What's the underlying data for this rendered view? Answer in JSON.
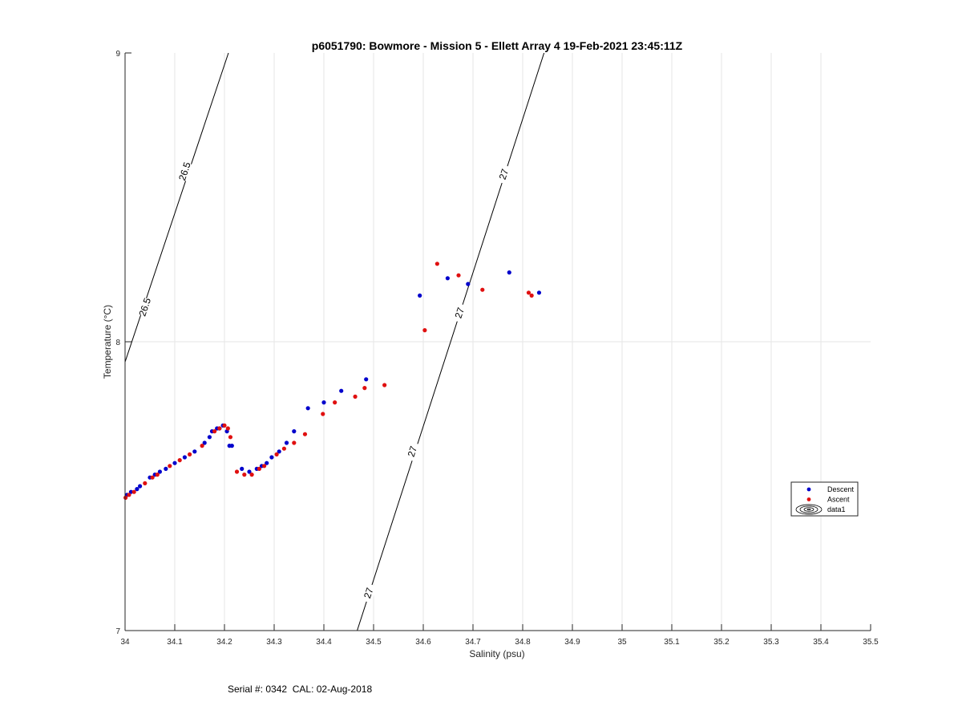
{
  "footer": {
    "serial_cal": "Serial #: 0342  CAL: 02-Aug-2018"
  },
  "colors": {
    "descent": "#0000cc",
    "ascent": "#e01010",
    "grid": "#e6e6e6",
    "axis": "#262626",
    "contour": "#000000"
  },
  "chart_data": {
    "type": "scatter",
    "title": "p6051790: Bowmore - Mission 5 - Ellett Array 4 19-Feb-2021 23:45:11Z",
    "xlabel": "Salinity (psu)",
    "ylabel": "Temperature (°C)",
    "xlim": [
      34.0,
      35.5
    ],
    "ylim": [
      7,
      9
    ],
    "xticks": [
      34,
      34.1,
      34.2,
      34.3,
      34.4,
      34.5,
      34.6,
      34.7,
      34.8,
      34.9,
      35,
      35.1,
      35.2,
      35.3,
      35.4,
      35.5
    ],
    "xtick_labels": [
      "34",
      "34.1",
      "34.2",
      "34.3",
      "34.4",
      "34.5",
      "34.6",
      "34.7",
      "34.8",
      "34.9",
      "35",
      "35.1",
      "35.2",
      "35.3",
      "35.4",
      "35.5"
    ],
    "yticks": [
      7,
      8,
      9
    ],
    "ytick_labels": [
      "7",
      "8",
      "9"
    ],
    "grid": true,
    "legend_position": "right",
    "legend": [
      "Descent",
      "Ascent",
      "data1"
    ],
    "series": [
      {
        "name": "Descent",
        "marker": "dot",
        "points": [
          [
            34.004,
            7.47
          ],
          [
            34.012,
            7.48
          ],
          [
            34.024,
            7.49
          ],
          [
            34.03,
            7.5
          ],
          [
            34.05,
            7.53
          ],
          [
            34.06,
            7.54
          ],
          [
            34.07,
            7.55
          ],
          [
            34.082,
            7.56
          ],
          [
            34.1,
            7.58
          ],
          [
            34.12,
            7.6
          ],
          [
            34.14,
            7.62
          ],
          [
            34.16,
            7.65
          ],
          [
            34.17,
            7.67
          ],
          [
            34.175,
            7.69
          ],
          [
            34.185,
            7.7
          ],
          [
            34.19,
            7.7
          ],
          [
            34.197,
            7.71
          ],
          [
            34.205,
            7.69
          ],
          [
            34.21,
            7.64
          ],
          [
            34.215,
            7.64
          ],
          [
            34.235,
            7.56
          ],
          [
            34.25,
            7.55
          ],
          [
            34.265,
            7.56
          ],
          [
            34.275,
            7.57
          ],
          [
            34.285,
            7.58
          ],
          [
            34.295,
            7.6
          ],
          [
            34.31,
            7.62
          ],
          [
            34.325,
            7.65
          ],
          [
            34.34,
            7.69
          ],
          [
            34.368,
            7.77
          ],
          [
            34.4,
            7.79
          ],
          [
            34.435,
            7.83
          ],
          [
            34.485,
            7.87
          ],
          [
            34.593,
            8.16
          ],
          [
            34.649,
            8.22
          ],
          [
            34.69,
            8.2
          ],
          [
            34.773,
            8.24
          ],
          [
            34.833,
            8.17
          ]
        ]
      },
      {
        "name": "Ascent",
        "marker": "dot",
        "points": [
          [
            34.001,
            7.46
          ],
          [
            34.008,
            7.47
          ],
          [
            34.018,
            7.48
          ],
          [
            34.04,
            7.51
          ],
          [
            34.055,
            7.53
          ],
          [
            34.065,
            7.54
          ],
          [
            34.09,
            7.57
          ],
          [
            34.11,
            7.59
          ],
          [
            34.13,
            7.61
          ],
          [
            34.155,
            7.64
          ],
          [
            34.18,
            7.69
          ],
          [
            34.19,
            7.7
          ],
          [
            34.2,
            7.71
          ],
          [
            34.207,
            7.7
          ],
          [
            34.212,
            7.67
          ],
          [
            34.225,
            7.55
          ],
          [
            34.24,
            7.54
          ],
          [
            34.255,
            7.54
          ],
          [
            34.27,
            7.56
          ],
          [
            34.28,
            7.57
          ],
          [
            34.305,
            7.61
          ],
          [
            34.32,
            7.63
          ],
          [
            34.34,
            7.65
          ],
          [
            34.362,
            7.68
          ],
          [
            34.398,
            7.75
          ],
          [
            34.422,
            7.79
          ],
          [
            34.463,
            7.81
          ],
          [
            34.482,
            7.84
          ],
          [
            34.522,
            7.85
          ],
          [
            34.603,
            8.04
          ],
          [
            34.628,
            8.27
          ],
          [
            34.671,
            8.23
          ],
          [
            34.719,
            8.18
          ],
          [
            34.812,
            8.17
          ],
          [
            34.818,
            8.16
          ]
        ]
      }
    ],
    "contours": [
      {
        "name": "26.5",
        "points": [
          [
            34.0,
            7.93
          ],
          [
            34.208,
            9.0
          ]
        ],
        "label_positions": [
          [
            34.04,
            8.12
          ],
          [
            34.12,
            8.59
          ]
        ]
      },
      {
        "name": "27",
        "points": [
          [
            34.467,
            7.0
          ],
          [
            34.843,
            9.0
          ]
        ],
        "label_positions": [
          [
            34.49,
            7.13
          ],
          [
            34.578,
            7.62
          ],
          [
            34.673,
            8.1
          ],
          [
            34.762,
            8.58
          ]
        ]
      }
    ]
  }
}
